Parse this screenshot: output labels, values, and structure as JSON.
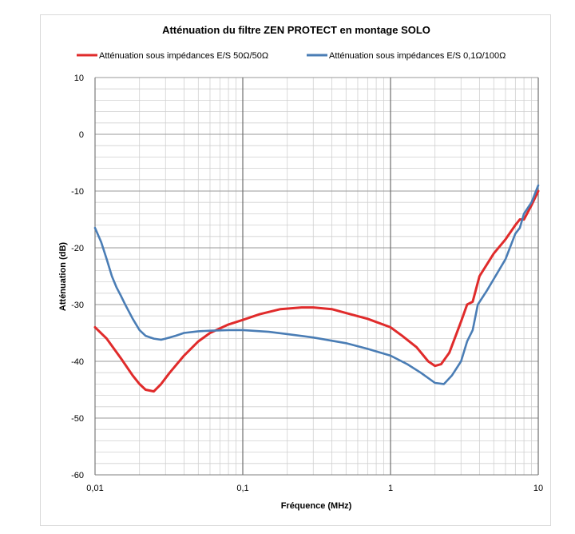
{
  "chart_data": {
    "type": "line",
    "title": "Atténuation du filtre ZEN PROTECT en montage SOLO",
    "xlabel": "Fréquence (MHz)",
    "ylabel": "Atténuation (dB)",
    "x_scale": "log",
    "xlim": [
      0.01,
      10
    ],
    "ylim": [
      -60,
      10
    ],
    "grid": true,
    "legend_position": "top",
    "x_ticks": [
      "0,01",
      "0,1",
      "1",
      "10"
    ],
    "y_ticks": [
      "10",
      "0",
      "-10",
      "-20",
      "-30",
      "-40",
      "-50",
      "-60"
    ],
    "series": [
      {
        "name": "Atténuation sous impédances E/S 50Ω/50Ω",
        "color": "#e02b2b",
        "x": [
          0.01,
          0.012,
          0.015,
          0.018,
          0.02,
          0.022,
          0.025,
          0.028,
          0.032,
          0.04,
          0.05,
          0.06,
          0.08,
          0.1,
          0.13,
          0.18,
          0.25,
          0.3,
          0.4,
          0.5,
          0.7,
          1.0,
          1.2,
          1.5,
          1.8,
          2.0,
          2.2,
          2.5,
          3.0,
          3.3,
          3.6,
          4.0,
          5.0,
          6.0,
          7.0,
          7.5,
          8.0,
          9.0,
          10.0
        ],
        "y": [
          -34,
          -36,
          -39.5,
          -42.5,
          -44,
          -45,
          -45.3,
          -44,
          -42,
          -39,
          -36.5,
          -35,
          -33.5,
          -32.7,
          -31.7,
          -30.8,
          -30.5,
          -30.5,
          -30.8,
          -31.5,
          -32.5,
          -34,
          -35.5,
          -37.5,
          -40,
          -40.8,
          -40.5,
          -38.5,
          -33,
          -30,
          -29.5,
          -25,
          -21,
          -18.5,
          -16,
          -15,
          -15,
          -12.5,
          -10
        ]
      },
      {
        "name": "Atténuation sous impédances E/S 0,1Ω/100Ω",
        "color": "#4a7db5",
        "x": [
          0.01,
          0.011,
          0.012,
          0.013,
          0.014,
          0.015,
          0.016,
          0.018,
          0.02,
          0.022,
          0.025,
          0.028,
          0.03,
          0.035,
          0.04,
          0.05,
          0.06,
          0.08,
          0.1,
          0.15,
          0.2,
          0.3,
          0.5,
          0.7,
          1.0,
          1.3,
          1.6,
          2.0,
          2.3,
          2.6,
          3.0,
          3.3,
          3.6,
          3.9,
          4.5,
          5.0,
          6.0,
          7.0,
          7.5,
          8.0,
          9.0,
          10.0
        ],
        "y": [
          -16.5,
          -19,
          -22,
          -25,
          -27,
          -28.5,
          -30,
          -32.5,
          -34.5,
          -35.5,
          -36,
          -36.2,
          -36,
          -35.5,
          -35,
          -34.7,
          -34.6,
          -34.5,
          -34.5,
          -34.8,
          -35.2,
          -35.8,
          -36.8,
          -37.8,
          -39,
          -40.5,
          -42,
          -43.8,
          -44,
          -42.5,
          -40,
          -36.5,
          -34.5,
          -30,
          -27.5,
          -25.5,
          -22,
          -17.5,
          -16.5,
          -14,
          -12,
          -9
        ]
      }
    ]
  }
}
